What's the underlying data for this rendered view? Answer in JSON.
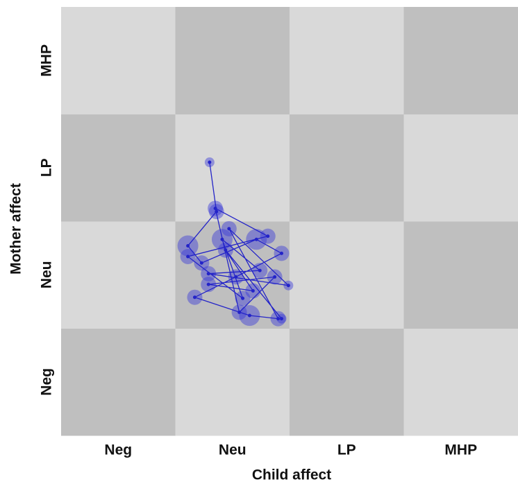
{
  "chart_data": {
    "type": "state-space-grid",
    "x_label": "Child affect",
    "y_label": "Mother affect",
    "x_categories": [
      "Neg",
      "Neu",
      "LP",
      "MHP"
    ],
    "y_categories": [
      "Neg",
      "Neu",
      "LP",
      "MHP"
    ],
    "xlim": [
      0,
      4
    ],
    "ylim": [
      0,
      4
    ],
    "cell_colors": [
      "#d9d9d9",
      "#bfbfbf"
    ],
    "line_color": "#2323c8",
    "marker_color": "#3a3ad8",
    "x": [
      1.3,
      1.36,
      1.11,
      1.23,
      1.71,
      1.93,
      1.53,
      1.17,
      1.65,
      1.9,
      1.47,
      1.99,
      1.29,
      1.74,
      1.41,
      1.59,
      1.11,
      1.81,
      1.35,
      1.56,
      1.87,
      1.29,
      1.68,
      1.44,
      1.93
    ],
    "y": [
      2.55,
      2.09,
      1.77,
      1.61,
      1.83,
      1.7,
      1.48,
      1.29,
      1.12,
      1.09,
      1.93,
      1.4,
      1.51,
      1.54,
      1.83,
      1.28,
      1.67,
      1.86,
      2.12,
      1.15,
      1.48,
      1.41,
      1.35,
      1.73,
      1.09
    ],
    "sizes": [
      1,
      2,
      3,
      2,
      3,
      2,
      2,
      2,
      3,
      2,
      2,
      1,
      2,
      2,
      3,
      2,
      2,
      2,
      2,
      2,
      2,
      2,
      2,
      2,
      1
    ]
  }
}
